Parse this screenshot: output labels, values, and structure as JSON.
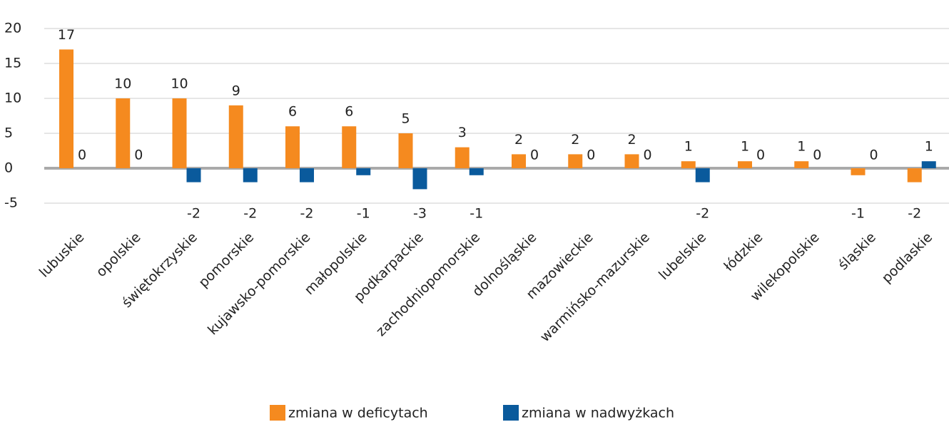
{
  "chart_data": {
    "type": "bar",
    "categories": [
      "lubuskie",
      "opolskie",
      "świętokrzyskie",
      "pomorskie",
      "kujawsko-pomorskie",
      "małopolskie",
      "podkarpackie",
      "zachodniopomorskie",
      "dolnośląskie",
      "mazowieckie",
      "warmińsko-mazurskie",
      "lubelskie",
      "łódzkie",
      "wilekopolskie",
      "śląskie",
      "podlaskie"
    ],
    "series": [
      {
        "name": "zmiana w deficytach",
        "color": "#f58a1f",
        "values": [
          17,
          10,
          10,
          9,
          6,
          6,
          5,
          3,
          2,
          2,
          2,
          1,
          1,
          1,
          -1,
          -2
        ]
      },
      {
        "name": "zmiana w nadwyżkach",
        "color": "#0a5a9c",
        "values": [
          0,
          0,
          -2,
          -2,
          -2,
          -1,
          -3,
          -1,
          0,
          0,
          0,
          -2,
          0,
          0,
          0,
          1
        ]
      }
    ],
    "ylim": [
      -5,
      20
    ],
    "yticks": [
      -5,
      0,
      5,
      10,
      15,
      20
    ],
    "grid": true,
    "legend": "bottom"
  }
}
